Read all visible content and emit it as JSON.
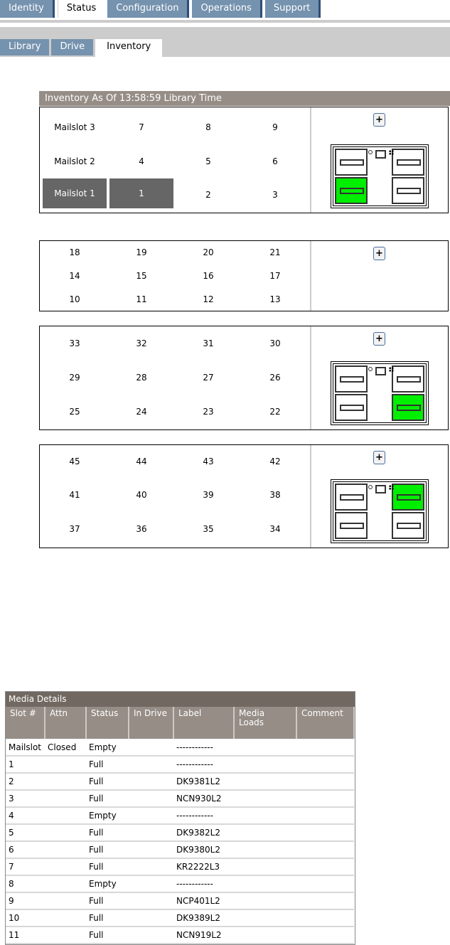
{
  "top_tabs": [
    {
      "label": "Identity",
      "active": false
    },
    {
      "label": "Status",
      "active": true
    },
    {
      "label": "Configuration",
      "active": false
    },
    {
      "label": "Operations",
      "active": false
    },
    {
      "label": "Support",
      "active": false
    }
  ],
  "sub_tabs": [
    {
      "label": "Library",
      "active": false
    },
    {
      "label": "Drive",
      "active": false
    },
    {
      "label": "Inventory",
      "active": true
    }
  ],
  "inventory": {
    "title": "Inventory As Of 13:58:59 Library Time",
    "magazines": [
      {
        "rows": [
          [
            "Mailslot 3",
            "7",
            "8",
            "9"
          ],
          [
            "Mailslot 2",
            "4",
            "5",
            "6"
          ],
          [
            "Mailslot 1",
            "1",
            "2",
            "3"
          ]
        ],
        "selected": [
          "Mailslot 1",
          "1"
        ],
        "expand_label": "+",
        "tray": true,
        "occupied_slot": "bottom-left"
      },
      {
        "rows": [
          [
            "18",
            "19",
            "20",
            "21"
          ],
          [
            "14",
            "15",
            "16",
            "17"
          ],
          [
            "10",
            "11",
            "12",
            "13"
          ]
        ],
        "expand_label": "+",
        "tray": false
      },
      {
        "rows": [
          [
            "33",
            "32",
            "31",
            "30"
          ],
          [
            "29",
            "28",
            "27",
            "26"
          ],
          [
            "25",
            "24",
            "23",
            "22"
          ]
        ],
        "expand_label": "+",
        "tray": true,
        "occupied_slot": "bottom-right"
      },
      {
        "rows": [
          [
            "45",
            "44",
            "43",
            "42"
          ],
          [
            "41",
            "40",
            "39",
            "38"
          ],
          [
            "37",
            "36",
            "35",
            "34"
          ]
        ],
        "expand_label": "+",
        "tray": true,
        "occupied_slot": "top-right"
      }
    ],
    "occupied_color": "#00ee00"
  },
  "media_details": {
    "title": "Media Details",
    "columns": [
      "Slot #",
      "Attn",
      "Status",
      "In Drive",
      "Label",
      "Media Loads",
      "Comment"
    ],
    "rows": [
      [
        "Mailslot",
        "Closed",
        "Empty",
        "",
        "------------",
        "",
        ""
      ],
      [
        "1",
        "",
        "Full",
        "",
        "------------",
        "",
        ""
      ],
      [
        "2",
        "",
        "Full",
        "",
        "DK9381L2",
        "",
        ""
      ],
      [
        "3",
        "",
        "Full",
        "",
        "NCN930L2",
        "",
        ""
      ],
      [
        "4",
        "",
        "Empty",
        "",
        "------------",
        "",
        ""
      ],
      [
        "5",
        "",
        "Full",
        "",
        "DK9382L2",
        "",
        ""
      ],
      [
        "6",
        "",
        "Full",
        "",
        "DK9380L2",
        "",
        ""
      ],
      [
        "7",
        "",
        "Full",
        "",
        "KR2222L3",
        "",
        ""
      ],
      [
        "8",
        "",
        "Empty",
        "",
        "------------",
        "",
        ""
      ],
      [
        "9",
        "",
        "Full",
        "",
        "NCP401L2",
        "",
        ""
      ],
      [
        "10",
        "",
        "Full",
        "",
        "DK9389L2",
        "",
        ""
      ],
      [
        "11",
        "",
        "Full",
        "",
        "NCN919L2",
        "",
        ""
      ]
    ]
  }
}
